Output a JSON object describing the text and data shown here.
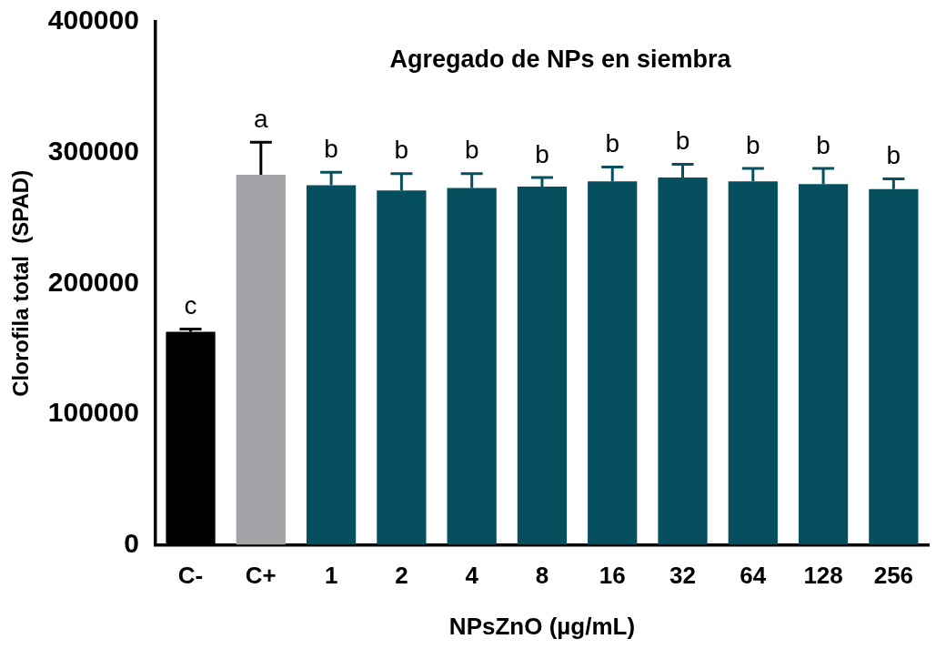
{
  "chart_data": {
    "type": "bar",
    "title": "Agregado de NPs en siembra",
    "xlabel": "NPsZnO (µg/mL)",
    "ylabel": "Clorofila total  (SPAD)",
    "categories": [
      "C-",
      "C+",
      "1",
      "2",
      "4",
      "8",
      "16",
      "32",
      "64",
      "128",
      "256"
    ],
    "values": [
      163000,
      283000,
      275000,
      271000,
      273000,
      274000,
      278000,
      281000,
      278000,
      276000,
      272000
    ],
    "errors": [
      2000,
      25000,
      10000,
      13000,
      11000,
      7000,
      11000,
      10000,
      10000,
      12000,
      8000
    ],
    "colors": [
      "#000000",
      "#a3a2a6",
      "#054f5f",
      "#054f5f",
      "#054f5f",
      "#054f5f",
      "#054f5f",
      "#054f5f",
      "#054f5f",
      "#054f5f",
      "#054f5f"
    ],
    "ylim": [
      0,
      400000
    ],
    "yticks": [
      0,
      100000,
      200000,
      300000,
      400000
    ],
    "grid": false,
    "legend": false,
    "annotations": [
      "c",
      "a",
      "b",
      "b",
      "b",
      "b",
      "b",
      "b",
      "b",
      "b",
      "b"
    ]
  }
}
